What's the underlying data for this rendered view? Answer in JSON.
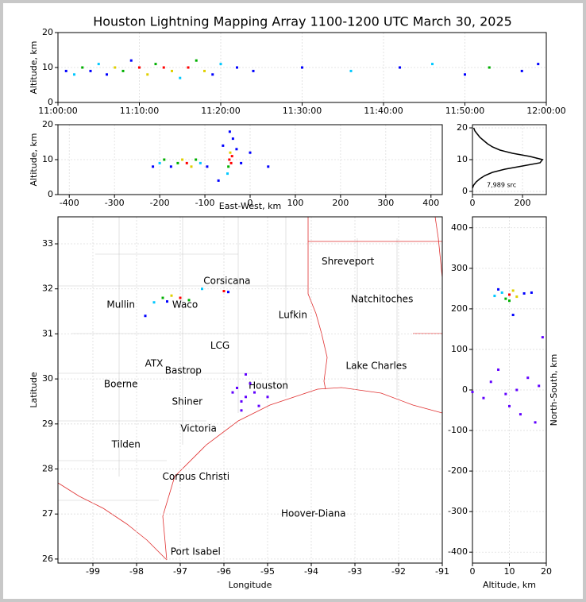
{
  "chart_data": [
    {
      "type": "scatter",
      "title": "Houston Lightning Mapping Array 1100-1200 UTC March 30, 2025",
      "ylabel": "Altitude, km",
      "xlim": [
        0,
        60
      ],
      "xticks": [
        {
          "value": 0,
          "label": "11:00:00"
        },
        {
          "value": 10,
          "label": "11:10:00"
        },
        {
          "value": 20,
          "label": "11:20:00"
        },
        {
          "value": 30,
          "label": "11:30:00"
        },
        {
          "value": 40,
          "label": "11:40:00"
        },
        {
          "value": 50,
          "label": "11:50:00"
        },
        {
          "value": 60,
          "label": "12:00:00"
        }
      ],
      "ylim": [
        0,
        20
      ],
      "yticks": [
        0,
        10,
        20
      ],
      "grid": true,
      "x": [
        1,
        2,
        3,
        4,
        5,
        6,
        7,
        8,
        9,
        10,
        11,
        12,
        13,
        14,
        15,
        16,
        17,
        18,
        19,
        20,
        22,
        24,
        30,
        36,
        42,
        46,
        50,
        53,
        57,
        59
      ],
      "y": [
        9,
        8,
        10,
        9,
        11,
        8,
        10,
        9,
        12,
        10,
        8,
        11,
        10,
        9,
        7,
        10,
        12,
        9,
        8,
        11,
        10,
        9,
        10,
        9,
        10,
        11,
        8,
        10,
        9,
        11
      ],
      "colors": [
        "#0000ff",
        "#00c8ff",
        "#00b000",
        "#0000ff",
        "#00c8ff",
        "#0000ff",
        "#e0d000",
        "#00b000",
        "#0000ff",
        "#ff0000",
        "#e0d000",
        "#00b000",
        "#ff0000",
        "#e0d000",
        "#00c8ff",
        "#ff0000",
        "#00b000",
        "#e0d000",
        "#0000ff",
        "#00c8ff",
        "#0000ff",
        "#0000ff",
        "#0000ff",
        "#00c8ff",
        "#0000ff",
        "#00c8ff",
        "#0000ff",
        "#00b000",
        "#0000ff",
        "#0000ff"
      ]
    },
    {
      "type": "scatter",
      "xlabel": "East-West, km",
      "ylabel": "Altitude, km",
      "xlim": [
        -425,
        425
      ],
      "xticks": [
        -400,
        -300,
        -200,
        -100,
        0,
        100,
        200,
        300,
        400
      ],
      "ylim": [
        0,
        20
      ],
      "yticks": [
        0,
        10,
        20
      ],
      "grid": true,
      "x": [
        -215,
        -200,
        -190,
        -175,
        -160,
        -150,
        -140,
        -130,
        -120,
        -110,
        -95,
        -60,
        -50,
        -48,
        -46,
        -44,
        -42,
        -40,
        -38,
        -45,
        -30,
        -20,
        0,
        40,
        -70
      ],
      "y": [
        8,
        9,
        10,
        8,
        9,
        10,
        9,
        8,
        10,
        9,
        8,
        14,
        6,
        8,
        10,
        12,
        9,
        11,
        16,
        18,
        13,
        9,
        12,
        8,
        4
      ],
      "colors": [
        "#0000ff",
        "#00c8ff",
        "#00b000",
        "#0000ff",
        "#00b000",
        "#e0d000",
        "#ff0000",
        "#e0d000",
        "#00b000",
        "#00c8ff",
        "#0000ff",
        "#0000ff",
        "#00c8ff",
        "#00b000",
        "#ff0000",
        "#e0d000",
        "#ff0000",
        "#ff0000",
        "#0000ff",
        "#0000ff",
        "#0000ff",
        "#0000ff",
        "#0000ff",
        "#0000ff",
        "#0000ff"
      ]
    },
    {
      "type": "line",
      "annotation": "7,989 src",
      "color": "#000000",
      "xlim": [
        0,
        295
      ],
      "xticks": [
        0,
        200
      ],
      "ylim": [
        -1,
        21
      ],
      "yticks": [
        0,
        10,
        20
      ],
      "grid": true,
      "x": [
        0,
        5,
        15,
        30,
        50,
        80,
        130,
        200,
        270,
        280,
        230,
        160,
        110,
        80,
        60,
        45,
        30,
        20,
        10,
        5
      ],
      "y": [
        1,
        2,
        3,
        4,
        5,
        6,
        7,
        8,
        9,
        10,
        11,
        12,
        13,
        14,
        15,
        16,
        17,
        18,
        19,
        20
      ]
    },
    {
      "type": "scatter",
      "xlabel": "Longitude",
      "ylabel": "Latitude",
      "xlim": [
        -99.8,
        -91
      ],
      "xticks": [
        -99,
        -98,
        -97,
        -96,
        -95,
        -94,
        -93,
        -92,
        -91
      ],
      "ylim": [
        25.91,
        33.6
      ],
      "yticks": [
        26,
        27,
        28,
        29,
        30,
        31,
        32,
        33
      ],
      "grid": true,
      "x": [
        -97.6,
        -97.4,
        -97.2,
        -97.0,
        -96.8,
        -97.3,
        -96.5,
        -96.0,
        -95.9,
        -97.8,
        -95.7,
        -95.5,
        -95.3,
        -95.6,
        -95.4,
        -95.8,
        -95.2,
        -95.5,
        -95.0,
        -95.6
      ],
      "y": [
        31.7,
        31.8,
        31.85,
        31.8,
        31.75,
        31.72,
        32.0,
        31.95,
        31.93,
        31.4,
        29.8,
        29.6,
        29.7,
        29.5,
        29.9,
        29.7,
        29.4,
        30.1,
        29.6,
        29.3
      ],
      "colors": [
        "#00c8ff",
        "#00b000",
        "#e0d000",
        "#ff0000",
        "#00b000",
        "#0000ff",
        "#00c8ff",
        "#ff0000",
        "#0000ff",
        "#0000ff",
        "#6000ff",
        "#6000ff",
        "#6000ff",
        "#6000ff",
        "#6000ff",
        "#6000ff",
        "#6000ff",
        "#6000ff",
        "#6000ff",
        "#6000ff"
      ],
      "cities": [
        {
          "name": "Shreveport",
          "lon": -93.16,
          "lat": 32.6,
          "color": "#000000"
        },
        {
          "name": "Corsicana",
          "lon": -95.93,
          "lat": 32.17,
          "color": "#000000"
        },
        {
          "name": "Natchitoches",
          "lon": -92.38,
          "lat": 31.77,
          "color": "#000000"
        },
        {
          "name": "Mullin",
          "lon": -98.36,
          "lat": 31.64,
          "color": "#f08a4b"
        },
        {
          "name": "Waco",
          "lon": -96.89,
          "lat": 31.64,
          "color": "#000000"
        },
        {
          "name": "Lufkin",
          "lon": -94.42,
          "lat": 31.41,
          "color": "#000000"
        },
        {
          "name": "LCG",
          "lon": -96.09,
          "lat": 30.73,
          "color": "#602020"
        },
        {
          "name": "ATX",
          "lon": -97.6,
          "lat": 30.34,
          "color": "#f08a4b"
        },
        {
          "name": "Bastrop",
          "lon": -96.93,
          "lat": 30.18,
          "color": "#000000"
        },
        {
          "name": "Lake Charles",
          "lon": -92.51,
          "lat": 30.28,
          "color": "#000000"
        },
        {
          "name": "Boerne",
          "lon": -98.36,
          "lat": 29.88,
          "color": "#000000"
        },
        {
          "name": "Houston",
          "lon": -94.98,
          "lat": 29.84,
          "color": "#e0a000"
        },
        {
          "name": "Shiner",
          "lon": -96.84,
          "lat": 29.49,
          "color": "#000000"
        },
        {
          "name": "Victoria",
          "lon": -96.58,
          "lat": 28.89,
          "color": "#000000"
        },
        {
          "name": "Tilden",
          "lon": -98.24,
          "lat": 28.54,
          "color": "#000000"
        },
        {
          "name": "Corpus Christi",
          "lon": -96.64,
          "lat": 27.82,
          "color": "#000000"
        },
        {
          "name": "Hoover-Diana",
          "lon": -93.95,
          "lat": 27.0,
          "color": "#1010e0"
        },
        {
          "name": "Port Isabel",
          "lon": -96.65,
          "lat": 26.16,
          "color": "#000000"
        }
      ]
    },
    {
      "type": "scatter",
      "xlabel": "Altitude, km",
      "ylabel": "North-South, km",
      "xlim": [
        0,
        20
      ],
      "xticks": [
        0,
        10,
        20
      ],
      "ylim": [
        -427,
        427
      ],
      "yticks": [
        -400,
        -300,
        -200,
        -100,
        0,
        100,
        200,
        300,
        400
      ],
      "grid": true,
      "x": [
        8,
        10,
        12,
        9,
        11,
        14,
        6,
        16,
        10,
        7,
        11,
        5,
        9,
        12,
        15,
        3,
        10,
        18,
        7,
        13,
        0,
        19,
        17
      ],
      "y": [
        240,
        235,
        230,
        225,
        245,
        238,
        232,
        240,
        220,
        248,
        185,
        20,
        -10,
        0,
        30,
        -20,
        -40,
        10,
        50,
        -60,
        -5,
        130,
        -80
      ],
      "colors": [
        "#00c8ff",
        "#ff0000",
        "#e0d000",
        "#00b000",
        "#e0d000",
        "#0000ff",
        "#00c8ff",
        "#0000ff",
        "#00b000",
        "#0000ff",
        "#0000ff",
        "#6000ff",
        "#6000ff",
        "#6000ff",
        "#6000ff",
        "#6000ff",
        "#6000ff",
        "#6000ff",
        "#6000ff",
        "#6000ff",
        "#6000ff",
        "#6000ff",
        "#6000ff"
      ]
    }
  ]
}
